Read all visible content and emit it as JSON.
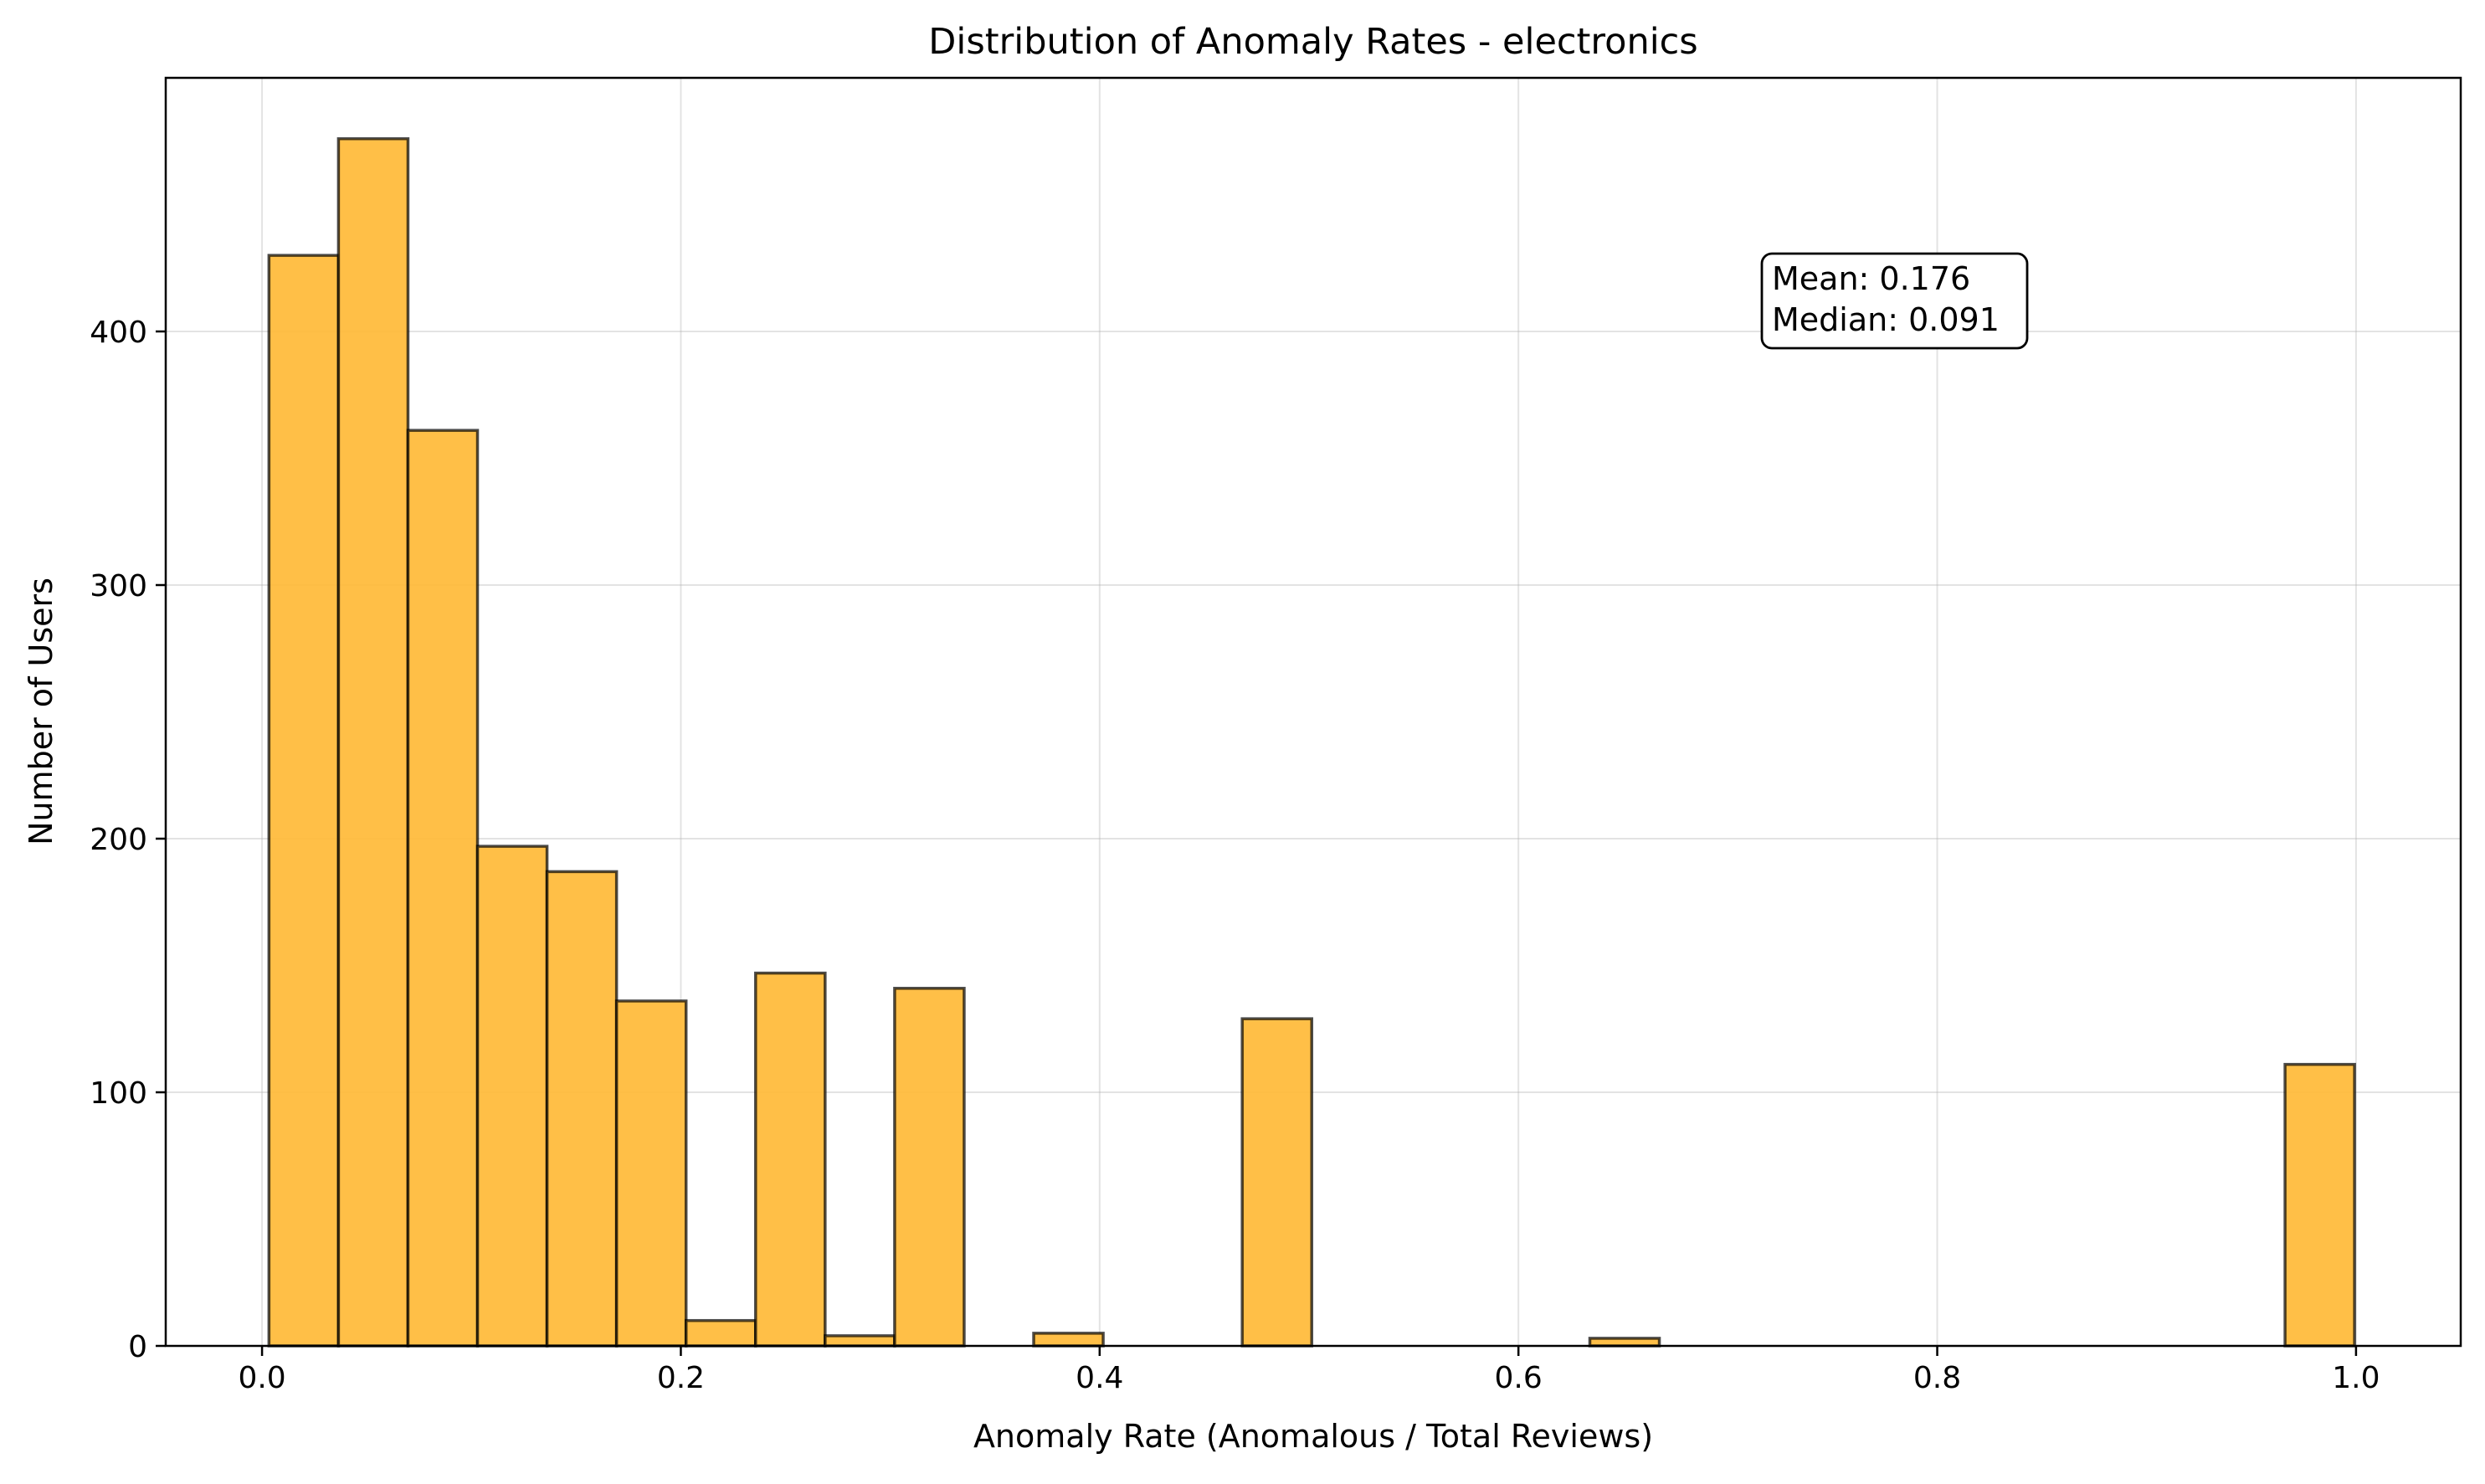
{
  "chart_data": {
    "type": "bar",
    "subtype": "histogram",
    "title": "Distribution of Anomaly Rates - electronics",
    "xlabel": "Anomaly Rate (Anomalous / Total Reviews)",
    "ylabel": "Number of Users",
    "xlim": [
      -0.046,
      1.05
    ],
    "ylim": [
      0,
      500
    ],
    "xticks": [
      "0.0",
      "0.2",
      "0.4",
      "0.6",
      "0.8",
      "1.0"
    ],
    "yticks": [
      "0",
      "100",
      "200",
      "300",
      "400"
    ],
    "grid": true,
    "bar_color": "#FFB833",
    "edge_color": "#000000",
    "bin_edges": [
      0.0033,
      0.0365,
      0.0697,
      0.1029,
      0.1361,
      0.1693,
      0.2025,
      0.2357,
      0.2689,
      0.3021,
      0.3353,
      0.3685,
      0.4017,
      0.4349,
      0.4681,
      0.5013,
      0.5345,
      0.5677,
      0.6009,
      0.6341,
      0.6673,
      0.7005,
      0.7337,
      0.7669,
      0.8001,
      0.8333,
      0.8665,
      0.8997,
      0.9329,
      0.9661,
      0.9993
    ],
    "values": [
      430,
      476,
      361,
      197,
      187,
      136,
      10,
      147,
      4,
      141,
      0,
      5,
      0,
      0,
      129,
      0,
      0,
      0,
      0,
      3,
      0,
      0,
      0,
      0,
      0,
      0,
      0,
      0,
      0,
      111
    ],
    "annotation": {
      "lines": [
        "Mean: 0.176",
        "Median: 0.091"
      ],
      "position": "upper-right"
    }
  }
}
